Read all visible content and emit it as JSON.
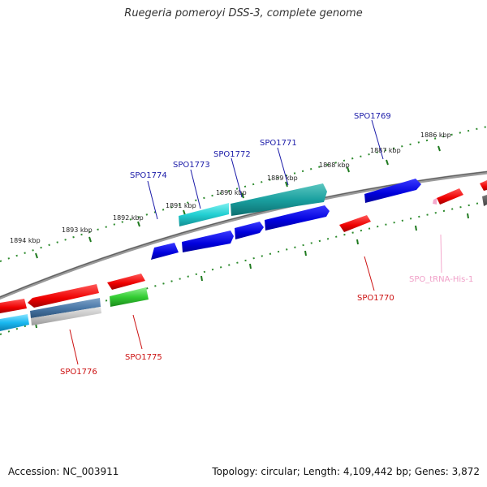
{
  "title": "Ruegeria pomeroyi DSS-3, complete genome",
  "footer": {
    "accession": "Accession: NC_003911",
    "topology": "Topology: circular; Length: 4,109,442 bp; Genes: 3,872"
  },
  "colors": {
    "backbone": "#7a7a7a",
    "ticks": "#2e8b2e",
    "label_blue": "#1a1aa8",
    "label_red": "#cc1111",
    "label_pink": "#f0a0c8"
  },
  "kbp_labels": [
    "1894 kbp",
    "1893 kbp",
    "1892 kbp",
    "1891 kbp",
    "1890 kbp",
    "1889 kbp",
    "1888 kbp",
    "1887 kbp",
    "1886 kbp"
  ],
  "gene_labels_top": [
    "SPO1774",
    "SPO1773",
    "SPO1772",
    "SPO1771",
    "SPO1769"
  ],
  "gene_labels_bottom": [
    "SPO1776",
    "SPO1775",
    "SPO1770",
    "SPO_tRNA-His-1"
  ]
}
